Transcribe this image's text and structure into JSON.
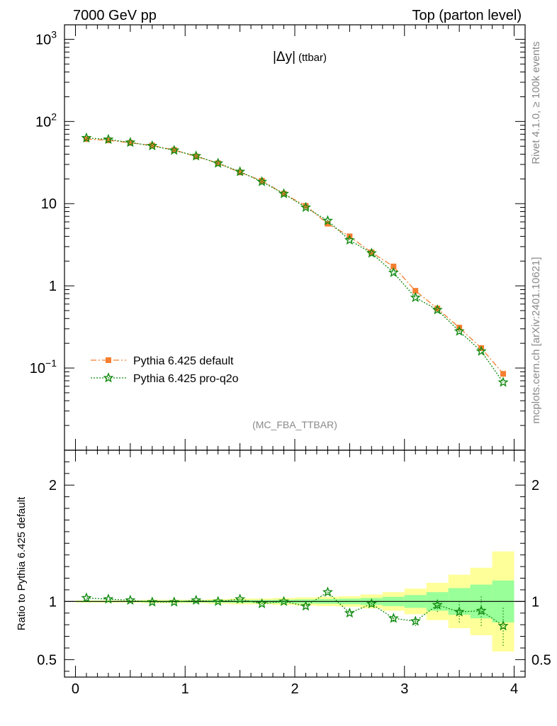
{
  "header": {
    "left_title": "7000 GeV pp",
    "right_title": "Top (parton level)"
  },
  "side_labels": {
    "rivet": "Rivet 4.1.0, ≥ 100k events",
    "mcplots": "mcplots.cern.ch [arXiv:2401.10621]"
  },
  "colors": {
    "default": "#f57f2f",
    "proq2o": "#108a10",
    "band_yellow": "#ffff99",
    "band_green": "#99ff99"
  },
  "chart_data": [
    {
      "type": "line",
      "panel": "main",
      "title": "|Δy| (ttbar)",
      "title_main": "|Δy|",
      "title_sub": "(ttbar)",
      "analysis_tag": "(MC_FBA_TTBAR)",
      "yscale": "log",
      "xlim": [
        -0.1,
        4.1
      ],
      "ylim": [
        0.01,
        1500
      ],
      "ytick_labels": [
        {
          "value": 1000,
          "base": "10",
          "exp": "3"
        },
        {
          "value": 100,
          "base": "10",
          "exp": "2"
        },
        {
          "value": 10,
          "base": "10",
          "exp": ""
        },
        {
          "value": 1,
          "base": "1",
          "exp": ""
        },
        {
          "value": 0.1,
          "base": "10",
          "exp": "−1"
        }
      ],
      "legend_position": "bottom-left",
      "x": [
        0.1,
        0.3,
        0.5,
        0.7,
        0.9,
        1.1,
        1.3,
        1.5,
        1.7,
        1.9,
        2.1,
        2.3,
        2.5,
        2.7,
        2.9,
        3.1,
        3.3,
        3.5,
        3.7,
        3.9
      ],
      "series": [
        {
          "name": "Pythia 6.425 default",
          "key": "default",
          "marker": "square",
          "line": "dashdot",
          "values": [
            61,
            59,
            55,
            51,
            45,
            37.5,
            31,
            24,
            19,
            13.2,
            9.4,
            5.7,
            4.0,
            2.55,
            1.72,
            0.87,
            0.53,
            0.31,
            0.175,
            0.085
          ]
        },
        {
          "name": "Pythia 6.425 pro-q2o",
          "key": "proq2o",
          "marker": "star",
          "line": "dotted",
          "values": [
            63,
            60.5,
            55.5,
            50.5,
            44.5,
            38,
            31,
            24.5,
            18.5,
            13.2,
            9.0,
            6.2,
            3.6,
            2.5,
            1.45,
            0.72,
            0.51,
            0.28,
            0.16,
            0.067
          ]
        }
      ]
    },
    {
      "type": "line",
      "panel": "ratio",
      "ylabel": "Ratio to Pythia 6.425 default",
      "xlim": [
        -0.1,
        4.1
      ],
      "ylim": [
        0.35,
        2.3
      ],
      "xtick_labels": [
        "0",
        "1",
        "2",
        "3",
        "4"
      ],
      "ytick_labels": [
        "0.5",
        "1",
        "2"
      ],
      "ytick_values": [
        0.5,
        1,
        2
      ],
      "bins": [
        0.0,
        0.2,
        0.4,
        0.6,
        0.8,
        1.0,
        1.2,
        1.4,
        1.6,
        1.8,
        2.0,
        2.2,
        2.4,
        2.6,
        2.8,
        3.0,
        3.2,
        3.4,
        3.6,
        3.8,
        4.0
      ],
      "band_yellow": {
        "lo": [
          0.99,
          0.99,
          0.99,
          0.985,
          0.985,
          0.985,
          0.98,
          0.975,
          0.975,
          0.97,
          0.965,
          0.96,
          0.955,
          0.94,
          0.92,
          0.89,
          0.84,
          0.77,
          0.71,
          0.57
        ],
        "hi": [
          1.01,
          1.01,
          1.01,
          1.015,
          1.015,
          1.015,
          1.02,
          1.025,
          1.025,
          1.03,
          1.035,
          1.04,
          1.045,
          1.06,
          1.08,
          1.11,
          1.16,
          1.23,
          1.29,
          1.43
        ]
      },
      "band_green": {
        "lo": [
          0.995,
          0.995,
          0.995,
          0.993,
          0.993,
          0.992,
          0.99,
          0.988,
          0.987,
          0.985,
          0.982,
          0.98,
          0.976,
          0.97,
          0.96,
          0.945,
          0.92,
          0.885,
          0.855,
          0.82
        ],
        "hi": [
          1.005,
          1.005,
          1.005,
          1.007,
          1.007,
          1.008,
          1.01,
          1.012,
          1.013,
          1.015,
          1.018,
          1.02,
          1.024,
          1.03,
          1.04,
          1.055,
          1.08,
          1.115,
          1.145,
          1.18
        ]
      },
      "ratio_values": [
        1.03,
        1.02,
        1.01,
        0.995,
        0.995,
        1.01,
        1.0,
        1.02,
        0.98,
        1.0,
        0.96,
        1.08,
        0.9,
        0.98,
        0.855,
        0.83,
        0.97,
        0.91,
        0.92,
        0.79
      ],
      "ratio_errors": [
        0.005,
        0.005,
        0.005,
        0.005,
        0.005,
        0.005,
        0.006,
        0.007,
        0.008,
        0.009,
        0.012,
        0.015,
        0.02,
        0.025,
        0.03,
        0.04,
        0.06,
        0.09,
        0.13,
        0.17
      ]
    }
  ]
}
